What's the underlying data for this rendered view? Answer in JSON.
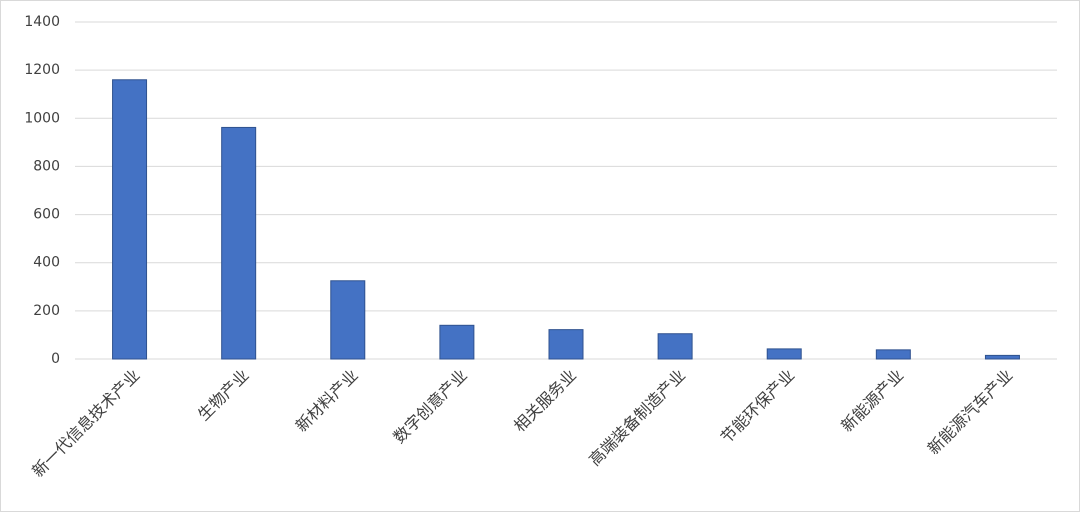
{
  "chart_data": {
    "type": "bar",
    "categories": [
      "新一代信息技术产业",
      "生物产业",
      "新材料产业",
      "数字创意产业",
      "相关服务业",
      "高端装备制造产业",
      "节能环保产业",
      "新能源产业",
      "新能源汽车产业"
    ],
    "values": [
      1160,
      962,
      325,
      140,
      122,
      105,
      42,
      38,
      15
    ],
    "color": "#4472c4",
    "ylim": [
      0,
      1400
    ],
    "yticks": [
      0,
      200,
      400,
      600,
      800,
      1000,
      1200,
      1400
    ],
    "grid": true
  }
}
